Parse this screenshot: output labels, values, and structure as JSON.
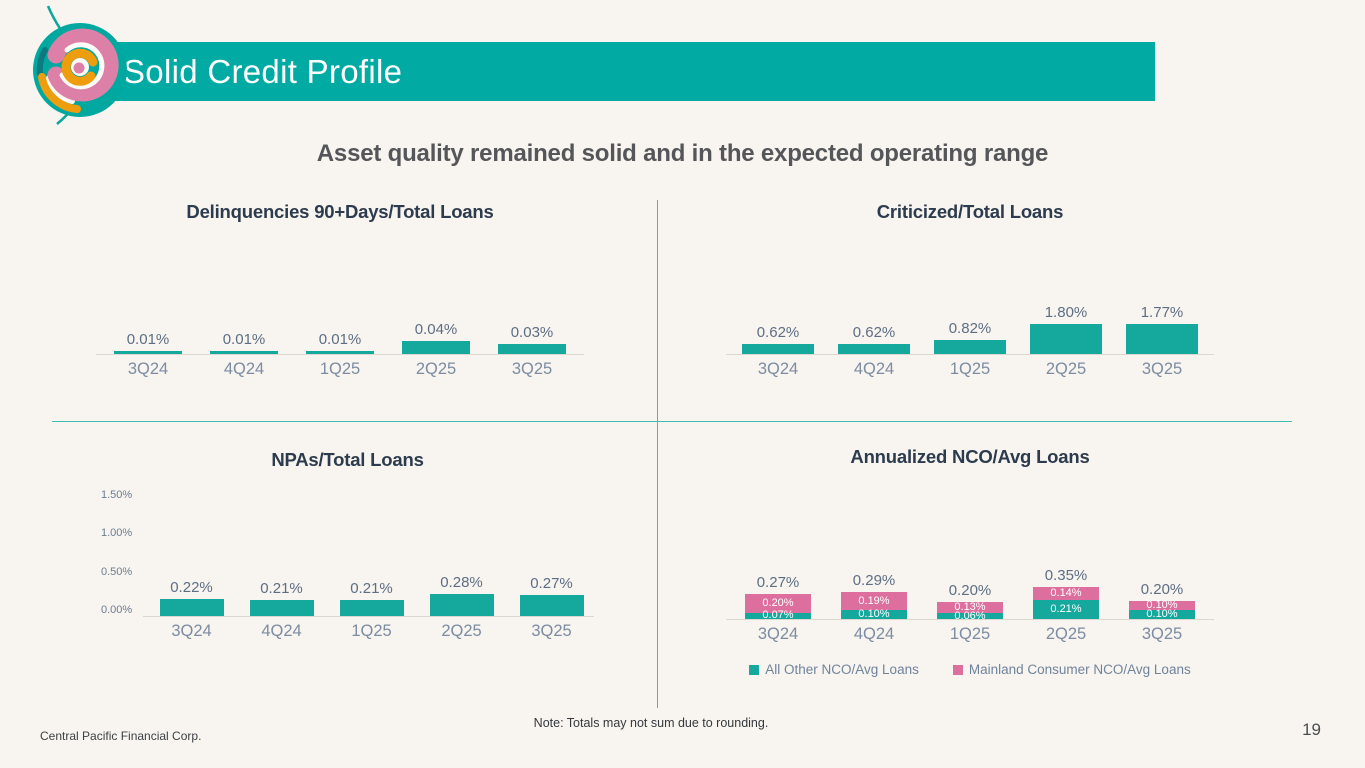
{
  "slide": {
    "title": "Solid Credit Profile",
    "subtitle": "Asset quality remained solid and in the expected operating range",
    "note": "Note: Totals may not sum due to rounding.",
    "footer": "Central Pacific Financial Corp.",
    "page_number": "19"
  },
  "colors": {
    "background": "#f8f4ef",
    "banner": "#01aaa3",
    "teal_bar": "#15a99e",
    "pink_bar": "#dd6f9e",
    "divider": "#45bcb2",
    "axis_line": "#dcd7d1",
    "chart_title": "#2c3b4d",
    "value_label": "#5d6e84",
    "category_label": "#7c8ca2"
  },
  "chart_data": [
    {
      "id": "delinquencies",
      "type": "bar",
      "title": "Delinquencies 90+Days/Total Loans",
      "categories": [
        "3Q24",
        "4Q24",
        "1Q25",
        "2Q25",
        "3Q25"
      ],
      "values": [
        0.01,
        0.01,
        0.01,
        0.04,
        0.03
      ],
      "value_labels": [
        "0.01%",
        "0.01%",
        "0.01%",
        "0.04%",
        "0.03%"
      ],
      "bar_color": "#15a99e",
      "grid": false,
      "legend_position": "none"
    },
    {
      "id": "criticized",
      "type": "bar",
      "title": "Criticized/Total Loans",
      "categories": [
        "3Q24",
        "4Q24",
        "1Q25",
        "2Q25",
        "3Q25"
      ],
      "values": [
        0.62,
        0.62,
        0.82,
        1.8,
        1.77
      ],
      "value_labels": [
        "0.62%",
        "0.62%",
        "0.82%",
        "1.80%",
        "1.77%"
      ],
      "bar_color": "#15a99e",
      "grid": false,
      "legend_position": "none"
    },
    {
      "id": "npas",
      "type": "bar",
      "title": "NPAs/Total Loans",
      "categories": [
        "3Q24",
        "4Q24",
        "1Q25",
        "2Q25",
        "3Q25"
      ],
      "values": [
        0.22,
        0.21,
        0.21,
        0.28,
        0.27
      ],
      "value_labels": [
        "0.22%",
        "0.21%",
        "0.21%",
        "0.28%",
        "0.27%"
      ],
      "bar_color": "#15a99e",
      "ylim": [
        0,
        1.75
      ],
      "ytick_values": [
        0,
        0.5,
        1.0,
        1.5
      ],
      "ytick_labels": [
        "0.00%",
        "0.50%",
        "1.00%",
        "1.50%"
      ],
      "grid": false,
      "legend_position": "none"
    },
    {
      "id": "nco",
      "type": "stacked-bar",
      "title": "Annualized NCO/Avg Loans",
      "categories": [
        "3Q24",
        "4Q24",
        "1Q25",
        "2Q25",
        "3Q25"
      ],
      "series": [
        {
          "name": "All Other NCO/Avg Loans",
          "color": "#15a99e",
          "values": [
            0.07,
            0.1,
            0.06,
            0.21,
            0.1
          ],
          "labels": [
            "0.07%",
            "0.10%",
            "0.06%",
            "0.21%",
            "0.10%"
          ]
        },
        {
          "name": "Mainland Consumer NCO/Avg Loans",
          "color": "#dd6f9e",
          "values": [
            0.2,
            0.19,
            0.13,
            0.14,
            0.1
          ],
          "labels": [
            "0.20%",
            "0.19%",
            "0.13%",
            "0.14%",
            "0.10%"
          ]
        }
      ],
      "totals": [
        0.27,
        0.29,
        0.2,
        0.35,
        0.2
      ],
      "total_labels": [
        "0.27%",
        "0.29%",
        "0.20%",
        "0.35%",
        "0.20%"
      ],
      "grid": false,
      "legend_position": "bottom"
    }
  ]
}
